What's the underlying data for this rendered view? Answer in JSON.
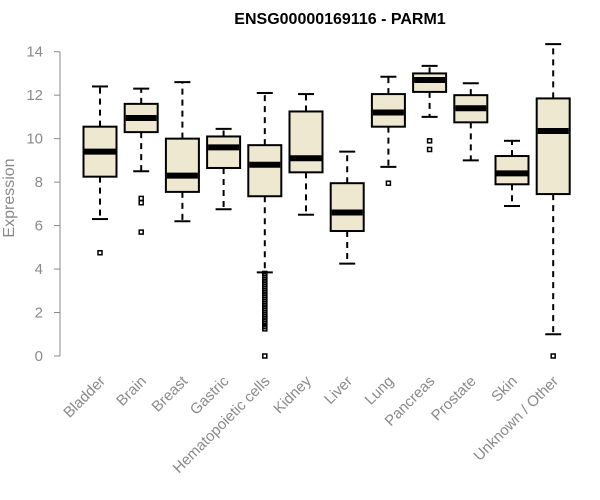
{
  "chart_data": {
    "type": "boxplot",
    "title": "ENSG00000169116 - PARM1",
    "xlabel": "",
    "ylabel": "Expression",
    "ylim": [
      0,
      14.4
    ],
    "yticks": [
      0,
      2,
      4,
      6,
      8,
      10,
      12,
      14
    ],
    "box_fill": "#efe8d0",
    "categories": [
      "Bladder",
      "Brain",
      "Breast",
      "Gastric",
      "Hematopoietic cells",
      "Kidney",
      "Liver",
      "Lung",
      "Pancreas",
      "Prostate",
      "Skin",
      "Unknown / Other"
    ],
    "boxes": [
      {
        "label": "Bladder",
        "whisker_low": 6.3,
        "q1": 8.25,
        "median": 9.4,
        "q3": 10.55,
        "whisker_high": 12.4,
        "outliers": [
          4.75
        ]
      },
      {
        "label": "Brain",
        "whisker_low": 8.5,
        "q1": 10.3,
        "median": 10.95,
        "q3": 11.6,
        "whisker_high": 12.3,
        "outliers": [
          7.25,
          7.05,
          5.7
        ]
      },
      {
        "label": "Breast",
        "whisker_low": 6.2,
        "q1": 7.55,
        "median": 8.3,
        "q3": 10.0,
        "whisker_high": 12.6,
        "outliers": []
      },
      {
        "label": "Gastric",
        "whisker_low": 6.75,
        "q1": 8.65,
        "median": 9.6,
        "q3": 10.1,
        "whisker_high": 10.45,
        "outliers": []
      },
      {
        "label": "Hematopoietic cells",
        "whisker_low": 3.85,
        "q1": 7.35,
        "median": 8.8,
        "q3": 9.7,
        "whisker_high": 12.1,
        "outliers": [
          3.8,
          3.7,
          3.6,
          3.5,
          3.4,
          3.3,
          3.2,
          3.1,
          3.0,
          2.9,
          2.8,
          2.7,
          2.6,
          2.5,
          2.4,
          2.3,
          2.2,
          2.1,
          2.0,
          1.9,
          1.8,
          1.7,
          1.6,
          1.5,
          1.35,
          1.25,
          0.0
        ]
      },
      {
        "label": "Kidney",
        "whisker_low": 6.5,
        "q1": 8.45,
        "median": 9.1,
        "q3": 11.25,
        "whisker_high": 12.05,
        "outliers": []
      },
      {
        "label": "Liver",
        "whisker_low": 4.25,
        "q1": 5.75,
        "median": 6.6,
        "q3": 7.95,
        "whisker_high": 9.4,
        "outliers": []
      },
      {
        "label": "Lung",
        "whisker_low": 8.7,
        "q1": 10.55,
        "median": 11.2,
        "q3": 12.05,
        "whisker_high": 12.85,
        "outliers": [
          7.95
        ]
      },
      {
        "label": "Pancreas",
        "whisker_low": 11.0,
        "q1": 12.15,
        "median": 12.7,
        "q3": 13.0,
        "whisker_high": 13.35,
        "outliers": [
          9.9,
          9.5
        ]
      },
      {
        "label": "Prostate",
        "whisker_low": 9.0,
        "q1": 10.75,
        "median": 11.4,
        "q3": 12.0,
        "whisker_high": 12.55,
        "outliers": []
      },
      {
        "label": "Skin",
        "whisker_low": 6.9,
        "q1": 7.9,
        "median": 8.4,
        "q3": 9.2,
        "whisker_high": 9.9,
        "outliers": []
      },
      {
        "label": "Unknown / Other",
        "whisker_low": 1.0,
        "q1": 7.45,
        "median": 10.35,
        "q3": 11.85,
        "whisker_high": 14.35,
        "outliers": [
          0.0
        ]
      }
    ]
  }
}
